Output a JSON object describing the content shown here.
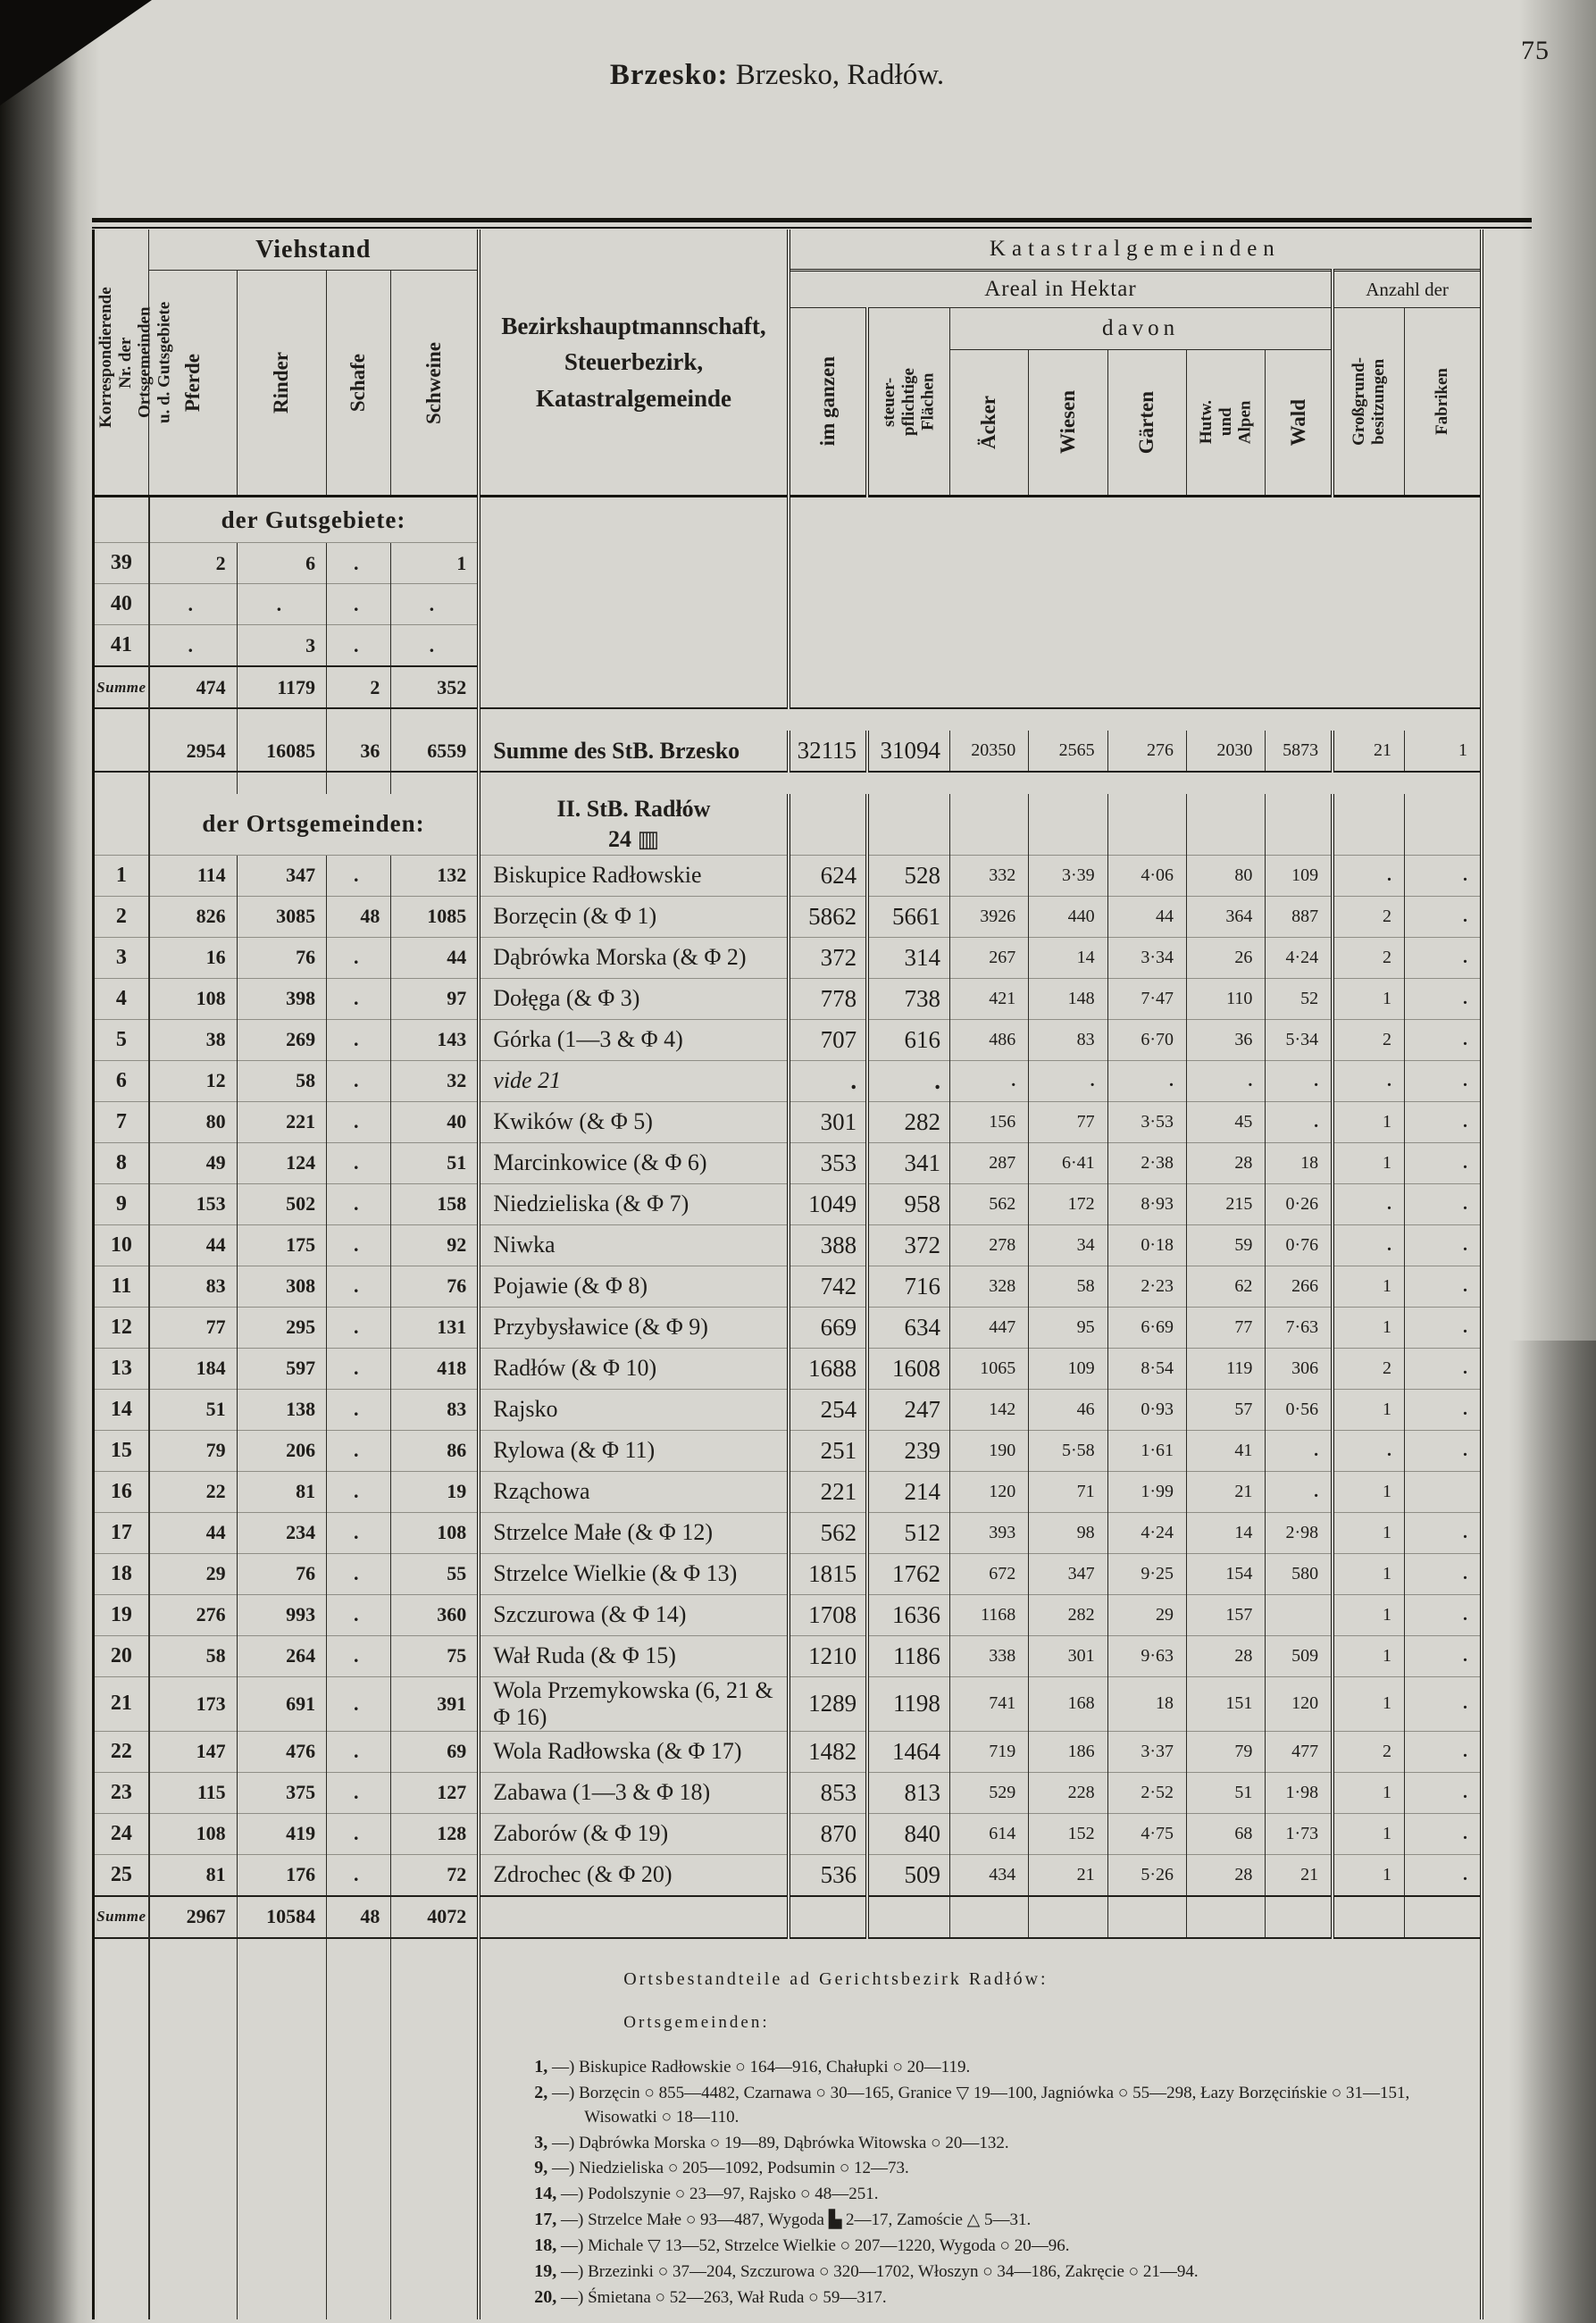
{
  "page": {
    "number": "75",
    "title_bold": "Brzesko:",
    "title_rest": " Brzesko, Radłów."
  },
  "header": {
    "corr_nr": "Korrespondierende\nNr. der Ortsgemeinden\nu. d. Gutsgebiete",
    "viehstand": "Viehstand",
    "viehstand_cols": [
      "Pferde",
      "Rinder",
      "Schafe",
      "Schweine"
    ],
    "district": "Bezirkshauptmannschaft,\nSteuerbezirk,\nKatastralgemeinde",
    "kataster": "Katastralgemeinden",
    "areal": "Areal in Hektar",
    "anzahl": "Anzahl der",
    "im_ganzen": "im ganzen",
    "steuerpfl": "steuer-\npflichtige\nFlächen",
    "davon": "davon",
    "davon_cols": [
      "Äcker",
      "Wiesen",
      "Gärten",
      "Hutw.\nund\nAlpen",
      "Wald"
    ],
    "anzahl_cols": [
      "Großgrund-\nbesitzungen",
      "Fabriken"
    ]
  },
  "gutsgebiete": {
    "label": "der Gutsgebiete:",
    "rows": [
      {
        "nr": "39",
        "v": [
          "2",
          "6",
          ".",
          "1"
        ]
      },
      {
        "nr": "40",
        "v": [
          ".",
          ".",
          ".",
          "."
        ]
      },
      {
        "nr": "41",
        "v": [
          ".",
          "3",
          ".",
          "."
        ]
      }
    ],
    "summe_label": "Summe",
    "summe": [
      "474",
      "1179",
      "2",
      "352"
    ]
  },
  "stb_summe": {
    "viehstand": [
      "2954",
      "16085",
      "36",
      "6559"
    ],
    "label": "Summe des StB. Brzesko",
    "kataster": [
      "32115",
      "31094",
      "20350",
      "2565",
      "276",
      "2030",
      "5873",
      "21",
      "1"
    ]
  },
  "ortsgemeinden": {
    "label": "der Ortsgemeinden:",
    "section_line1": "II. StB. Radłów",
    "section_line2": "24 ▥",
    "rows": [
      {
        "nr": "1",
        "v": [
          "114",
          "347",
          ".",
          "132"
        ],
        "name": "Biskupice Radłowskie",
        "k": [
          "624",
          "528",
          "332",
          "3·39",
          "4·06",
          "80",
          "109",
          ".",
          "."
        ]
      },
      {
        "nr": "2",
        "v": [
          "826",
          "3085",
          "48",
          "1085"
        ],
        "name": "Borzęcin (& Φ 1)",
        "k": [
          "5862",
          "5661",
          "3926",
          "440",
          "44",
          "364",
          "887",
          "2",
          "."
        ]
      },
      {
        "nr": "3",
        "v": [
          "16",
          "76",
          ".",
          "44"
        ],
        "name": "Dąbrówka Morska (& Φ 2)",
        "k": [
          "372",
          "314",
          "267",
          "14",
          "3·34",
          "26",
          "4·24",
          "2",
          "."
        ]
      },
      {
        "nr": "4",
        "v": [
          "108",
          "398",
          ".",
          "97"
        ],
        "name": "Dołęga (& Φ 3)",
        "k": [
          "778",
          "738",
          "421",
          "148",
          "7·47",
          "110",
          "52",
          "1",
          "."
        ]
      },
      {
        "nr": "5",
        "v": [
          "38",
          "269",
          ".",
          "143"
        ],
        "name": "Górka (1—3 & Φ 4)",
        "k": [
          "707",
          "616",
          "486",
          "83",
          "6·70",
          "36",
          "5·34",
          "2",
          "."
        ]
      },
      {
        "nr": "6",
        "v": [
          "12",
          "58",
          ".",
          "32"
        ],
        "name": "vide 21",
        "italic": true,
        "k": [
          ".",
          ".",
          ".",
          ".",
          ".",
          ".",
          ".",
          ".",
          "."
        ]
      },
      {
        "nr": "7",
        "v": [
          "80",
          "221",
          ".",
          "40"
        ],
        "name": "Kwików (& Φ 5)",
        "k": [
          "301",
          "282",
          "156",
          "77",
          "3·53",
          "45",
          ".",
          "1",
          "."
        ]
      },
      {
        "nr": "8",
        "v": [
          "49",
          "124",
          ".",
          "51"
        ],
        "name": "Marcinkowice (& Φ 6)",
        "k": [
          "353",
          "341",
          "287",
          "6·41",
          "2·38",
          "28",
          "18",
          "1",
          "."
        ]
      },
      {
        "nr": "9",
        "v": [
          "153",
          "502",
          ".",
          "158"
        ],
        "name": "Niedzieliska (& Φ 7)",
        "k": [
          "1049",
          "958",
          "562",
          "172",
          "8·93",
          "215",
          "0·26",
          ".",
          "."
        ]
      },
      {
        "nr": "10",
        "v": [
          "44",
          "175",
          ".",
          "92"
        ],
        "name": "Niwka",
        "k": [
          "388",
          "372",
          "278",
          "34",
          "0·18",
          "59",
          "0·76",
          ".",
          "."
        ]
      },
      {
        "nr": "11",
        "v": [
          "83",
          "308",
          ".",
          "76"
        ],
        "name": "Pojawie (& Φ 8)",
        "k": [
          "742",
          "716",
          "328",
          "58",
          "2·23",
          "62",
          "266",
          "1",
          "."
        ]
      },
      {
        "nr": "12",
        "v": [
          "77",
          "295",
          ".",
          "131"
        ],
        "name": "Przybysławice (& Φ 9)",
        "k": [
          "669",
          "634",
          "447",
          "95",
          "6·69",
          "77",
          "7·63",
          "1",
          "."
        ]
      },
      {
        "nr": "13",
        "v": [
          "184",
          "597",
          ".",
          "418"
        ],
        "name": "Radłów (& Φ 10)",
        "k": [
          "1688",
          "1608",
          "1065",
          "109",
          "8·54",
          "119",
          "306",
          "2",
          "."
        ]
      },
      {
        "nr": "14",
        "v": [
          "51",
          "138",
          ".",
          "83"
        ],
        "name": "Rajsko",
        "k": [
          "254",
          "247",
          "142",
          "46",
          "0·93",
          "57",
          "0·56",
          "1",
          "."
        ]
      },
      {
        "nr": "15",
        "v": [
          "79",
          "206",
          ".",
          "86"
        ],
        "name": "Rylowa (& Φ 11)",
        "k": [
          "251",
          "239",
          "190",
          "5·58",
          "1·61",
          "41",
          ".",
          ".",
          "."
        ]
      },
      {
        "nr": "16",
        "v": [
          "22",
          "81",
          ".",
          "19"
        ],
        "name": "Rząchowa",
        "k": [
          "221",
          "214",
          "120",
          "71",
          "1·99",
          "21",
          ".",
          "1",
          ""
        ]
      },
      {
        "nr": "17",
        "v": [
          "44",
          "234",
          ".",
          "108"
        ],
        "name": "Strzelce Małe (& Φ 12)",
        "k": [
          "562",
          "512",
          "393",
          "98",
          "4·24",
          "14",
          "2·98",
          "1",
          "."
        ]
      },
      {
        "nr": "18",
        "v": [
          "29",
          "76",
          ".",
          "55"
        ],
        "name": "Strzelce Wielkie (& Φ 13)",
        "k": [
          "1815",
          "1762",
          "672",
          "347",
          "9·25",
          "154",
          "580",
          "1",
          "."
        ]
      },
      {
        "nr": "19",
        "v": [
          "276",
          "993",
          ".",
          "360"
        ],
        "name": "Szczurowa (& Φ 14)",
        "k": [
          "1708",
          "1636",
          "1168",
          "282",
          "29",
          "157",
          "",
          "1",
          "."
        ]
      },
      {
        "nr": "20",
        "v": [
          "58",
          "264",
          ".",
          "75"
        ],
        "name": "Wał Ruda (& Φ 15)",
        "k": [
          "1210",
          "1186",
          "338",
          "301",
          "9·63",
          "28",
          "509",
          "1",
          "."
        ]
      },
      {
        "nr": "21",
        "v": [
          "173",
          "691",
          ".",
          "391"
        ],
        "name": "Wola Przemykowska (6, 21 & Φ 16)",
        "k": [
          "1289",
          "1198",
          "741",
          "168",
          "18",
          "151",
          "120",
          "1",
          "."
        ]
      },
      {
        "nr": "22",
        "v": [
          "147",
          "476",
          ".",
          "69"
        ],
        "name": "Wola Radłowska (& Φ 17)",
        "k": [
          "1482",
          "1464",
          "719",
          "186",
          "3·37",
          "79",
          "477",
          "2",
          "."
        ]
      },
      {
        "nr": "23",
        "v": [
          "115",
          "375",
          ".",
          "127"
        ],
        "name": "Zabawa (1—3 & Φ 18)",
        "k": [
          "853",
          "813",
          "529",
          "228",
          "2·52",
          "51",
          "1·98",
          "1",
          "."
        ]
      },
      {
        "nr": "24",
        "v": [
          "108",
          "419",
          ".",
          "128"
        ],
        "name": "Zaborów (& Φ 19)",
        "k": [
          "870",
          "840",
          "614",
          "152",
          "4·75",
          "68",
          "1·73",
          "1",
          "."
        ]
      },
      {
        "nr": "25",
        "v": [
          "81",
          "176",
          ".",
          "72"
        ],
        "name": "Zdrochec (& Φ 20)",
        "k": [
          "536",
          "509",
          "434",
          "21",
          "5·26",
          "28",
          "21",
          "1",
          "."
        ]
      }
    ],
    "summe_label": "Summe",
    "summe": [
      "2967",
      "10584",
      "48",
      "4072"
    ]
  },
  "footnotes": {
    "title": "Ortsbestandteile ad Gerichtsbezirk Radłów:",
    "subtitle": "Ortsgemeinden:",
    "items": [
      {
        "nr": "1,",
        "text": "—) Biskupice Radłowskie ○ 164—916, Chałupki ○ 20—119."
      },
      {
        "nr": "2,",
        "text": "—) Borzęcin ○ 855—4482, Czarnawa ○ 30—165, Granice ▽ 19—100, Jagniówka ○ 55—298, Łazy Borzęcińskie ○ 31—151, Wisowatki ○ 18—110."
      },
      {
        "nr": "3,",
        "text": "—) Dąbrówka Morska ○ 19—89, Dąbrówka Witowska ○ 20—132."
      },
      {
        "nr": "9,",
        "text": "—) Niedzieliska ○ 205—1092, Podsumin ○ 12—73."
      },
      {
        "nr": "14,",
        "text": "—) Podolszynie ○ 23—97, Rajsko ○ 48—251."
      },
      {
        "nr": "17,",
        "text": "—) Strzelce Małe ○ 93—487, Wygoda ▙ 2—17, Zamoście △ 5—31."
      },
      {
        "nr": "18,",
        "text": "—) Michale ▽ 13—52, Strzelce Wielkie ○ 207—1220, Wygoda ○ 20—96."
      },
      {
        "nr": "19,",
        "text": "—) Brzezinki ○ 37—204, Szczurowa ○ 320—1702, Włoszyn ○ 34—186, Zakręcie ○ 21—94."
      },
      {
        "nr": "20,",
        "text": "—) Śmietana ○ 52—263, Wał Ruda ○ 59—317."
      }
    ]
  }
}
